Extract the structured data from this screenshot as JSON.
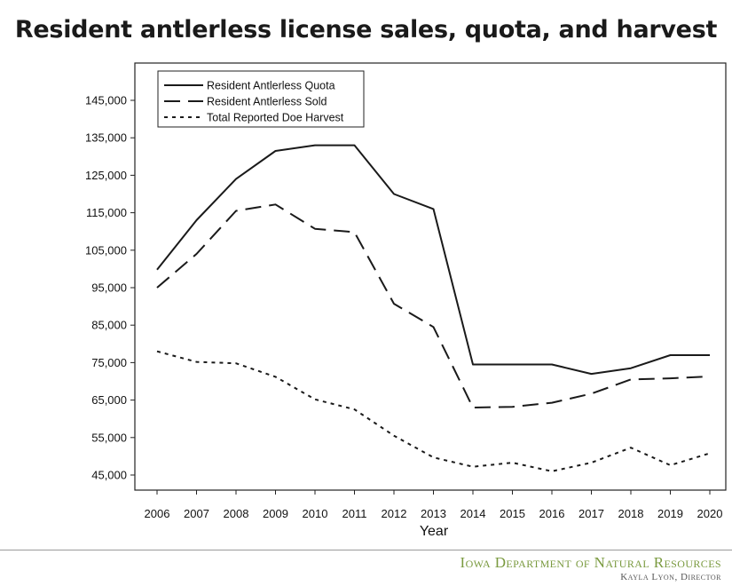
{
  "slide": {
    "title": "Resident antlerless license sales, quota, and harvest"
  },
  "chart_data": {
    "type": "line",
    "xlabel": "Year",
    "ylabel": "",
    "x": [
      "2006",
      "2007",
      "2008",
      "2009",
      "2010",
      "2011",
      "2012",
      "2013",
      "2014",
      "2015",
      "2016",
      "2017",
      "2018",
      "2019",
      "2020"
    ],
    "yticks": [
      "45,000",
      "55,000",
      "65,000",
      "75,000",
      "85,000",
      "95,000",
      "105,000",
      "115,000",
      "125,000",
      "135,000",
      "145,000"
    ],
    "ylim": [
      42000,
      160000
    ],
    "grid": false,
    "legend_position": "top-left",
    "series": [
      {
        "name": "Resident Antlerless Quota",
        "style": "solid",
        "values": [
          99800,
          113000,
          124000,
          131500,
          133000,
          133000,
          120000,
          116000,
          74500,
          74500,
          74500,
          72000,
          73500,
          77000,
          77000
        ]
      },
      {
        "name": "Resident Antlerless Sold",
        "style": "dashed",
        "values": [
          95000,
          104000,
          115500,
          117200,
          110700,
          109800,
          90700,
          84500,
          63000,
          63200,
          64300,
          66700,
          70500,
          70800,
          71300
        ]
      },
      {
        "name": "Total Reported Doe Harvest",
        "style": "dotted",
        "values": [
          78000,
          75200,
          74800,
          71200,
          65200,
          62500,
          55500,
          49700,
          47200,
          48300,
          46000,
          48300,
          52300,
          47600,
          50800
        ]
      }
    ]
  },
  "footer": {
    "agency": "Iowa Department of Natural Resources",
    "director": "Kayla Lyon, Director"
  }
}
